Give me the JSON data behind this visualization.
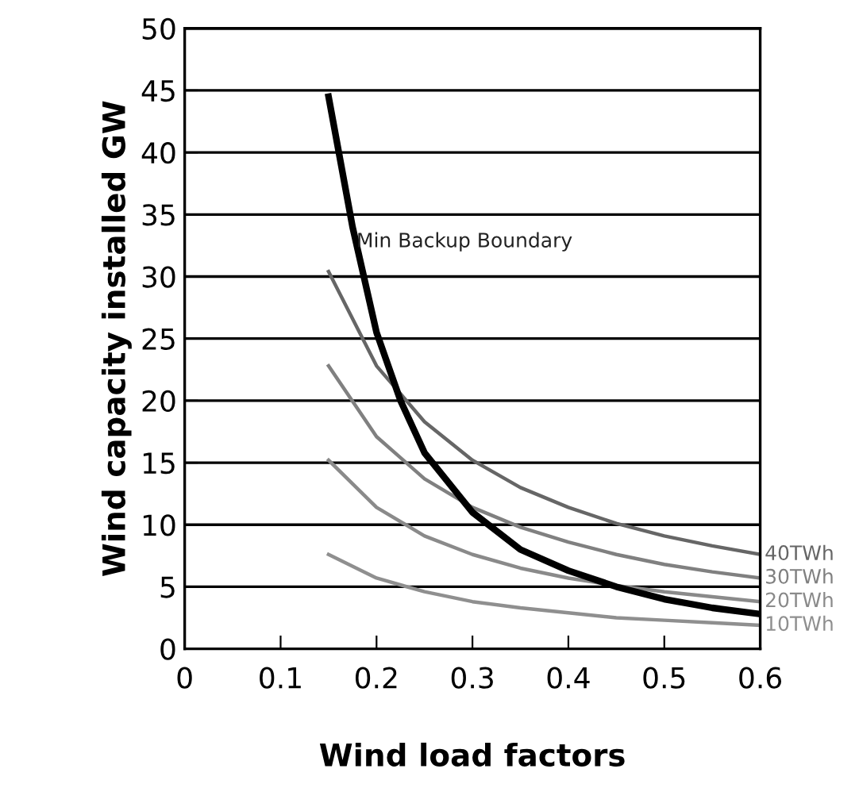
{
  "chart_data": {
    "type": "line",
    "xlabel": "Wind load factors",
    "ylabel": "Wind capacity installed GW",
    "xlim": [
      0,
      0.6
    ],
    "xticks": [
      0,
      0.1,
      0.2,
      0.3,
      0.4,
      0.5,
      0.6
    ],
    "ylim": [
      0,
      50
    ],
    "yticks": [
      0,
      5,
      10,
      15,
      20,
      25,
      30,
      35,
      40,
      45,
      50
    ],
    "grid": "y",
    "legend": false,
    "marker": "none",
    "line_style": "solid",
    "series": [
      {
        "name": "Min Backup Boundary",
        "color": "#000000",
        "x": [
          0.15,
          0.175,
          0.2,
          0.225,
          0.25,
          0.3,
          0.35,
          0.4,
          0.45,
          0.5,
          0.55,
          0.6
        ],
        "values": [
          44.5,
          34,
          25.5,
          20,
          15.8,
          11,
          8,
          6.3,
          5,
          4,
          3.3,
          2.8
        ]
      },
      {
        "name": "40TWh",
        "color": "#666666",
        "x": [
          0.15,
          0.2,
          0.25,
          0.3,
          0.35,
          0.4,
          0.45,
          0.5,
          0.55,
          0.6
        ],
        "values": [
          30.4,
          22.8,
          18.3,
          15.2,
          13.0,
          11.4,
          10.1,
          9.1,
          8.3,
          7.6
        ]
      },
      {
        "name": "30TWh",
        "color": "#808080",
        "x": [
          0.15,
          0.2,
          0.25,
          0.3,
          0.35,
          0.4,
          0.45,
          0.5,
          0.55,
          0.6
        ],
        "values": [
          22.8,
          17.1,
          13.7,
          11.4,
          9.8,
          8.6,
          7.6,
          6.8,
          6.2,
          5.7
        ]
      },
      {
        "name": "20TWh",
        "color": "#8a8a8a",
        "x": [
          0.15,
          0.2,
          0.25,
          0.3,
          0.35,
          0.4,
          0.45,
          0.5,
          0.55,
          0.6
        ],
        "values": [
          15.2,
          11.4,
          9.1,
          7.6,
          6.5,
          5.7,
          5.1,
          4.6,
          4.2,
          3.8
        ]
      },
      {
        "name": "10TWh",
        "color": "#8f8f8f",
        "x": [
          0.15,
          0.2,
          0.25,
          0.3,
          0.35,
          0.4,
          0.45,
          0.5,
          0.55,
          0.6
        ],
        "values": [
          7.6,
          5.7,
          4.6,
          3.8,
          3.3,
          2.9,
          2.5,
          2.3,
          2.1,
          1.9
        ]
      }
    ]
  }
}
